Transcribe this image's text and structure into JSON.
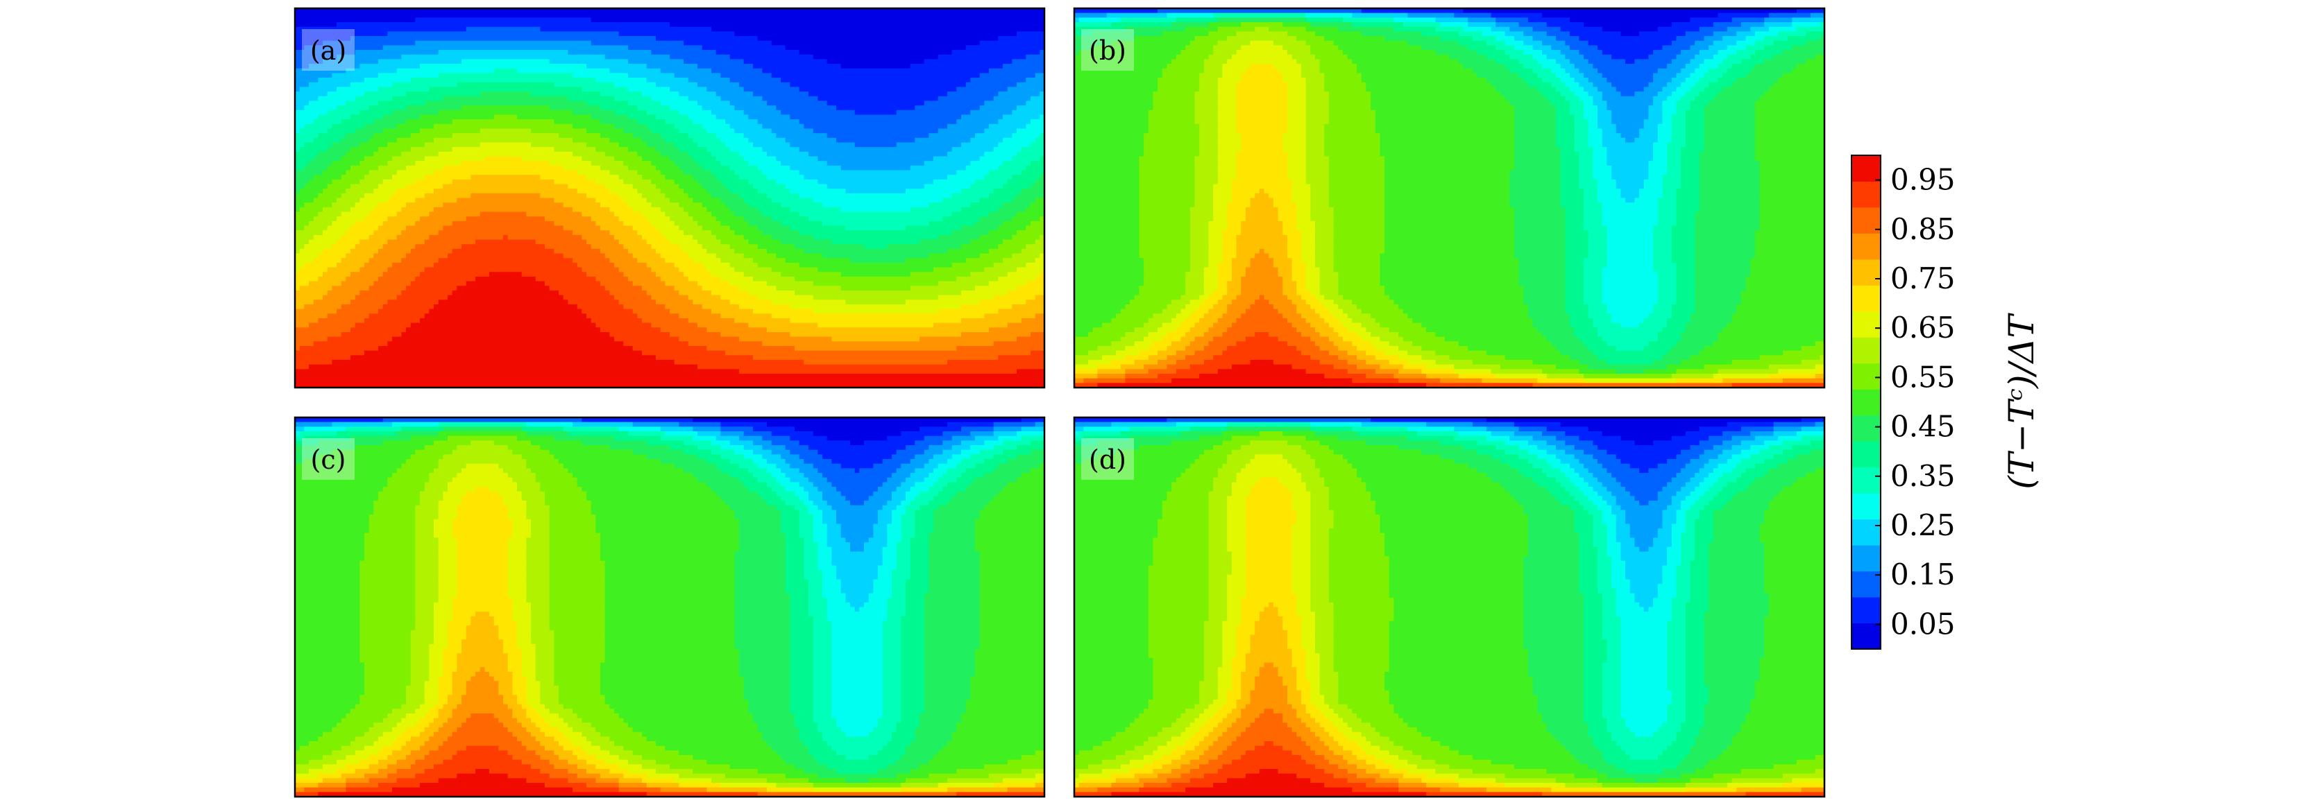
{
  "chart_data": {
    "type": "heatmap",
    "description_of_content": "contour",
    "panels": [
      {
        "label": "(a)",
        "plumes": [
          {
            "pos": 0.29,
            "height": 0.5,
            "width": 0.22
          }
        ],
        "cold_plumes": [
          {
            "pos": 0.76,
            "depth": 0.38,
            "width": 0.24
          }
        ],
        "style": "stratified"
      },
      {
        "label": "(b)",
        "plumes": [
          {
            "pos": 0.25,
            "height": 0.72,
            "width": 0.05
          }
        ],
        "cold_plumes": [
          {
            "pos": 0.74,
            "depth": 0.7,
            "width": 0.05
          }
        ],
        "style": "convective"
      },
      {
        "label": "(c)",
        "plumes": [
          {
            "pos": 0.25,
            "height": 0.67,
            "width": 0.05
          }
        ],
        "cold_plumes": [
          {
            "pos": 0.75,
            "depth": 0.7,
            "width": 0.05
          }
        ],
        "style": "convective"
      },
      {
        "label": "(d)",
        "plumes": [
          {
            "pos": 0.26,
            "height": 0.7,
            "width": 0.045
          }
        ],
        "cold_plumes": [
          {
            "pos": 0.76,
            "depth": 0.7,
            "width": 0.045
          }
        ],
        "style": "convective"
      }
    ],
    "colorbar": {
      "title": "(T−Tᶜ)/ΔT",
      "ticks": [
        "0.05",
        "0.15",
        "0.25",
        "0.35",
        "0.45",
        "0.55",
        "0.65",
        "0.75",
        "0.85",
        "0.95"
      ],
      "levels": 19,
      "range": [
        0,
        1
      ],
      "colors": [
        "#0000e6",
        "#0022ff",
        "#0062ff",
        "#00a0ff",
        "#00d4ff",
        "#00fff0",
        "#00ffb8",
        "#00f890",
        "#20f060",
        "#40f020",
        "#7ef000",
        "#b0f200",
        "#e2f800",
        "#ffe600",
        "#ffc000",
        "#ff9400",
        "#ff6800",
        "#ff3c00",
        "#f00a00"
      ]
    }
  }
}
